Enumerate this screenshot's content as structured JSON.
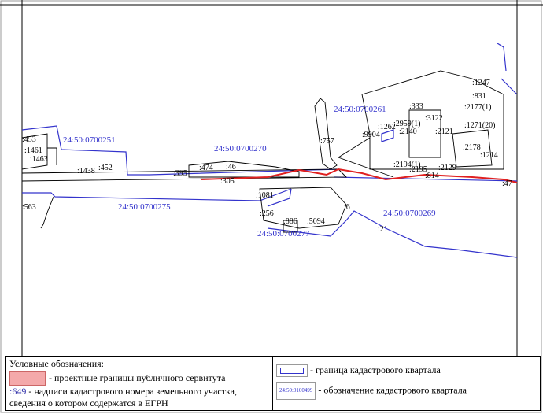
{
  "map": {
    "quarters": [
      "24:50:0700251",
      "24:50:0700270",
      "24:50:0700261",
      "24:50:0700275",
      "24:50:0700269",
      "24:50:0700277"
    ],
    "parcel_labels": [
      ":757",
      ":474",
      ":46",
      ":395",
      ":305",
      ":814",
      ":21",
      ":886",
      ":256",
      ":6",
      ":563",
      ":453",
      ":1461",
      ":1463",
      ":1438",
      ":452",
      ":333",
      ":9904",
      ":2140",
      ":2121",
      ":2194(1)",
      ":2195",
      ":2129",
      ":2178",
      ":1214",
      ":1247",
      ":831",
      ":2177(1)",
      ":1271(20)",
      ":2959(1)",
      ":3122",
      ":1262",
      ":47",
      ":1081",
      ":5094"
    ],
    "colors": {
      "quarter_boundary": "#3333cc",
      "servitude": "#e02020",
      "parcel": "#000000",
      "quarter_label": "#3333cc"
    }
  },
  "legend": {
    "title": "Условные обозначения:",
    "servitude_text": "- проектные границы публичного сервитута",
    "parcel_sample": ":649",
    "parcel_text": "- надписи кадастрового номера земельного участка,",
    "parcel_text2": "сведения о котором содержатся в ЕГРН",
    "quarter_boundary_text": "- граница кадастрового квартала",
    "quarter_sample": "24:50:0100499",
    "quarter_label_text": "- обозначение кадастрового квартала"
  }
}
